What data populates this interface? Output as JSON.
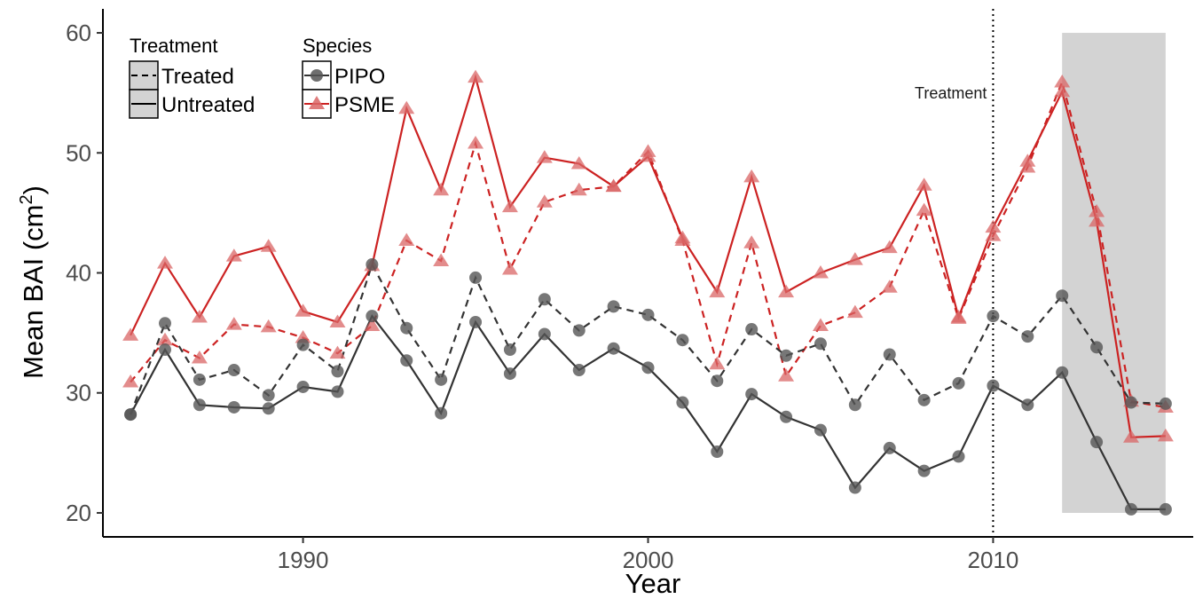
{
  "chart_data": {
    "type": "line",
    "xlabel": "Year",
    "ylabel": "Mean BAI (cm",
    "ylabel_sup": "2",
    "ylabel_close": ")",
    "xlim": [
      1984.2,
      2015.8
    ],
    "ylim": [
      18.0,
      62.0
    ],
    "x_ticks": [
      1990,
      2000,
      2010
    ],
    "y_ticks": [
      20,
      30,
      40,
      50,
      60
    ],
    "grid": false,
    "colors": {
      "PIPO": "#333333",
      "PSME": "#cc2222",
      "PIPO_marker": "#555555",
      "PSME_marker": "#d96666",
      "shade": "#d3d3d3"
    },
    "treatment_line": {
      "x": 2010,
      "label": "Treatment"
    },
    "shaded_region": {
      "x0": 2012,
      "x1": 2015,
      "y0": 20,
      "y1": 60
    },
    "legend": {
      "position": "top-left",
      "treatment_title": "Treatment",
      "treatment_items": [
        {
          "label": "Treated",
          "linetype": "dashed"
        },
        {
          "label": "Untreated",
          "linetype": "solid"
        }
      ],
      "species_title": "Species",
      "species_items": [
        {
          "label": "PIPO",
          "marker": "circle"
        },
        {
          "label": "PSME",
          "marker": "triangle"
        }
      ]
    },
    "x": [
      1985,
      1986,
      1987,
      1988,
      1989,
      1990,
      1991,
      1992,
      1993,
      1994,
      1995,
      1996,
      1997,
      1998,
      1999,
      2000,
      2001,
      2002,
      2003,
      2004,
      2005,
      2006,
      2007,
      2008,
      2009,
      2010,
      2011,
      2012,
      2013,
      2014,
      2015
    ],
    "series": [
      {
        "species": "PSME",
        "treatment": "Untreated",
        "values": [
          34.8,
          40.8,
          36.3,
          41.4,
          42.2,
          36.8,
          35.9,
          40.6,
          53.7,
          46.9,
          56.3,
          45.5,
          49.6,
          49.1,
          47.2,
          49.7,
          42.9,
          38.4,
          48.0,
          38.4,
          40.0,
          41.1,
          42.1,
          47.3,
          36.3,
          43.8,
          49.3,
          55.1,
          44.3,
          26.3,
          26.4
        ]
      },
      {
        "species": "PSME",
        "treatment": "Treated",
        "values": [
          30.9,
          34.4,
          32.9,
          35.7,
          35.5,
          34.6,
          33.3,
          35.6,
          42.7,
          41.0,
          50.8,
          40.3,
          45.9,
          46.9,
          47.2,
          50.1,
          42.7,
          32.4,
          42.5,
          31.4,
          35.6,
          36.7,
          38.8,
          45.2,
          36.2,
          43.1,
          48.8,
          55.9,
          45.1,
          29.3,
          28.8
        ]
      },
      {
        "species": "PIPO",
        "treatment": "Treated",
        "values": [
          28.2,
          35.8,
          31.1,
          31.9,
          29.8,
          34.0,
          31.8,
          40.7,
          35.4,
          31.1,
          39.6,
          33.6,
          37.8,
          35.2,
          37.2,
          36.5,
          34.4,
          31.0,
          35.3,
          33.1,
          34.1,
          29.0,
          33.2,
          29.4,
          30.8,
          36.4,
          34.7,
          38.1,
          33.8,
          29.2,
          29.1
        ]
      },
      {
        "species": "PIPO",
        "treatment": "Untreated",
        "values": [
          28.2,
          33.6,
          29.0,
          28.8,
          28.7,
          30.5,
          30.1,
          36.4,
          32.7,
          28.3,
          35.9,
          31.6,
          34.9,
          31.9,
          33.7,
          32.1,
          29.2,
          25.1,
          29.9,
          28.0,
          26.9,
          22.1,
          25.4,
          23.5,
          24.7,
          30.6,
          29.0,
          31.7,
          25.9,
          20.3,
          20.3
        ]
      }
    ]
  }
}
